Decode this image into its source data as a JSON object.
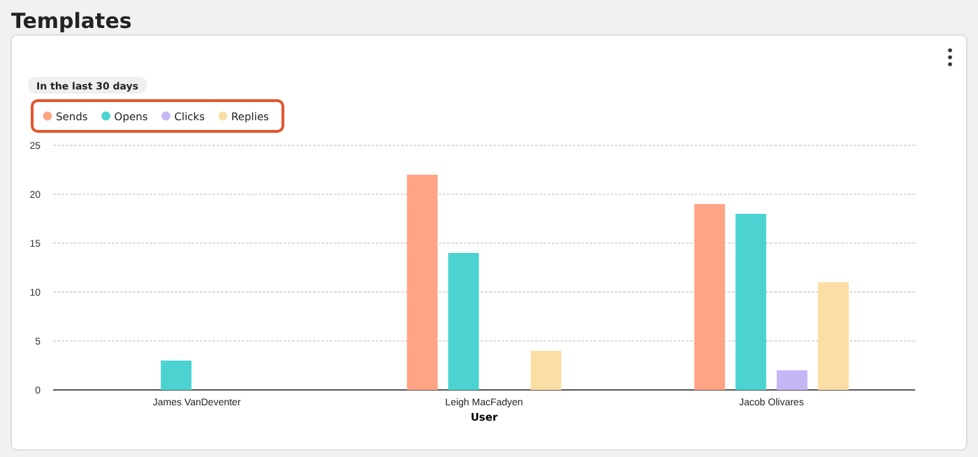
{
  "chart_data": {
    "type": "bar",
    "title": "Templates",
    "subtitle": "In the last 30 days",
    "xlabel": "User",
    "categories": [
      "James VanDeventer",
      "Leigh MacFadyen",
      "Jacob Olivares"
    ],
    "series": [
      {
        "name": "Sends",
        "color": "#ffa485",
        "values": [
          null,
          22,
          19
        ]
      },
      {
        "name": "Opens",
        "color": "#4cd3d1",
        "values": [
          3,
          14,
          18
        ]
      },
      {
        "name": "Clicks",
        "color": "#c5b6f6",
        "values": [
          null,
          null,
          2
        ]
      },
      {
        "name": "Replies",
        "color": "#fbdea4",
        "values": [
          null,
          4,
          11
        ]
      }
    ],
    "ylim": [
      0,
      25
    ],
    "yticks": [
      0,
      5,
      10,
      15,
      20,
      25
    ],
    "grid": "y",
    "legend": "top left"
  }
}
